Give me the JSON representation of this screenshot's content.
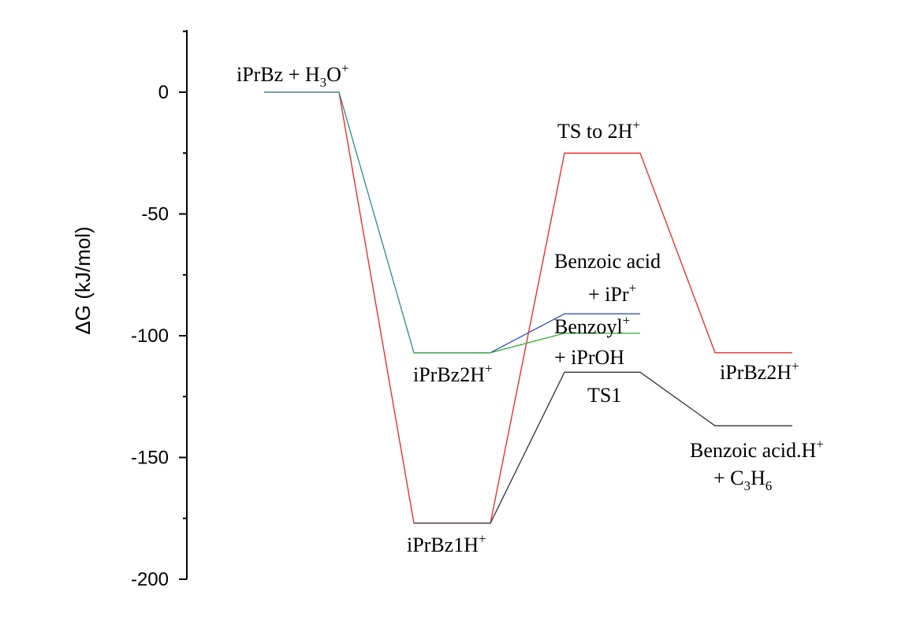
{
  "chart_data": {
    "type": "line",
    "ylabel": "ΔG (kJ/mol)",
    "ylim": [
      -200,
      25
    ],
    "yticks": [
      0,
      -50,
      -100,
      -150,
      -200
    ],
    "grid": false,
    "series": [
      {
        "color": "#ee2222",
        "points": [
          [
            1,
            0
          ],
          [
            2,
            0
          ],
          [
            3,
            -177
          ],
          [
            4,
            -177
          ],
          [
            5,
            -25
          ],
          [
            6,
            -25
          ],
          [
            7,
            -107
          ],
          [
            8,
            -107
          ]
        ]
      },
      {
        "color": "#2a8a8a",
        "points": [
          [
            1,
            0
          ],
          [
            2,
            0
          ],
          [
            3,
            -107
          ],
          [
            4,
            -107
          ]
        ]
      },
      {
        "color": "#3355bb",
        "points": [
          [
            3,
            -107
          ],
          [
            4,
            -107
          ],
          [
            5,
            -91
          ],
          [
            6,
            -91
          ]
        ]
      },
      {
        "color": "#33aa33",
        "points": [
          [
            3,
            -107
          ],
          [
            4,
            -107
          ],
          [
            5,
            -99
          ],
          [
            6,
            -99
          ]
        ]
      },
      {
        "color": "#333333",
        "points": [
          [
            3,
            -177
          ],
          [
            4,
            -177
          ],
          [
            5,
            -115
          ],
          [
            6,
            -115
          ],
          [
            7,
            -137
          ],
          [
            8,
            -137
          ]
        ]
      }
    ],
    "annotations": {
      "reactants": {
        "main": "iPrBz + H",
        "sub": "3",
        "tail": "O",
        "sup": "+"
      },
      "ts_to_2h": {
        "main": "TS to 2H",
        "sup": "+"
      },
      "benzoic_acid_line1": "Benzoic acid",
      "benzoic_acid_line2": {
        "main": "+ iPr",
        "sup": "+"
      },
      "benzoyl": {
        "main": "Benzoyl",
        "sup": "+"
      },
      "iproh": "+ iPrOH",
      "iprbz2h_mid": {
        "main": "iPrBz2H",
        "sup": "+"
      },
      "ts1": "TS1",
      "iprbz2h_right": {
        "main": "iPrBz2H",
        "sup": "+"
      },
      "benzoic_acid_h": {
        "main": "Benzoic acid.H",
        "sup": "+"
      },
      "c3h6": {
        "main": "+ C",
        "sub1": "3",
        "mid": "H",
        "sub2": "6"
      },
      "iprbz1h": {
        "main": "iPrBz1H",
        "sup": "+"
      }
    }
  }
}
